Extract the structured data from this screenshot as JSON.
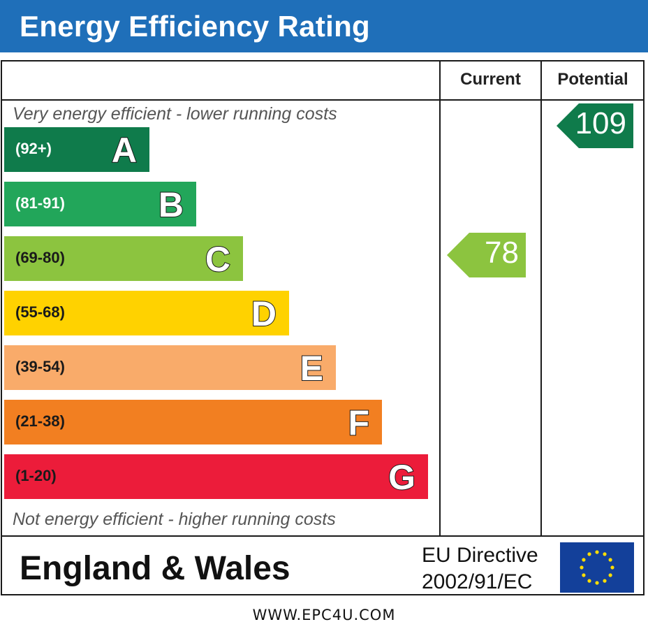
{
  "title": "Energy Efficiency Rating",
  "columns": {
    "current": "Current",
    "potential": "Potential"
  },
  "top_caption": "Very energy efficient - lower running costs",
  "bottom_caption": "Not energy efficient - higher running costs",
  "region": "England & Wales",
  "directive": {
    "line1": "EU Directive",
    "line2": "2002/91/EC"
  },
  "website": "WWW.EPC4U.COM",
  "chart_data": {
    "type": "bar",
    "bands": [
      {
        "letter": "A",
        "range": "(92+)",
        "color": "#0f7b4b",
        "text_color": "#ffffff"
      },
      {
        "letter": "B",
        "range": "(81-91)",
        "color": "#22a65a",
        "text_color": "#ffffff"
      },
      {
        "letter": "C",
        "range": "(69-80)",
        "color": "#8cc43f",
        "text_color": "#1a1a1a"
      },
      {
        "letter": "D",
        "range": "(55-68)",
        "color": "#ffd200",
        "text_color": "#1a1a1a"
      },
      {
        "letter": "E",
        "range": "(39-54)",
        "color": "#f9ab6a",
        "text_color": "#1a1a1a"
      },
      {
        "letter": "F",
        "range": "(21-38)",
        "color": "#f27f21",
        "text_color": "#1a1a1a"
      },
      {
        "letter": "G",
        "range": "(1-20)",
        "color": "#ec1c3a",
        "text_color": "#1a1a1a"
      }
    ],
    "current": {
      "value": 78,
      "band": "C",
      "color": "#8cc43f"
    },
    "potential": {
      "value": 109,
      "band": "A",
      "color": "#0f7b4b"
    }
  }
}
